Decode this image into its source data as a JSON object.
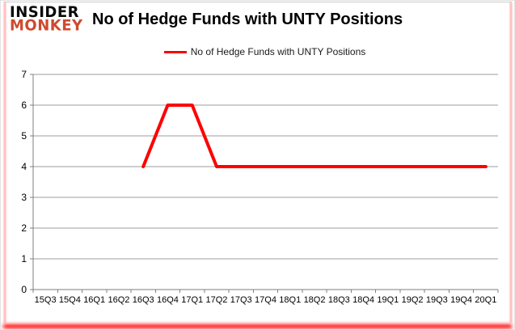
{
  "brand": {
    "line1": "INSIDER",
    "line2": "MONKEY",
    "monkey_color": "#ce4a2e"
  },
  "header": {
    "title": "No of Hedge Funds with UNTY Positions"
  },
  "legend": {
    "label": "No of Hedge Funds with UNTY Positions"
  },
  "colors": {
    "line": "#ff0000",
    "grid": "#9c9c9c",
    "axis": "#7f7f7f",
    "tick_text": "#000000"
  },
  "chart_data": {
    "type": "line",
    "title": "No of Hedge Funds with UNTY Positions",
    "categories": [
      "15Q3",
      "15Q4",
      "16Q1",
      "16Q2",
      "16Q3",
      "16Q4",
      "17Q1",
      "17Q2",
      "17Q3",
      "17Q4",
      "18Q1",
      "18Q2",
      "18Q3",
      "18Q4",
      "19Q1",
      "19Q2",
      "19Q3",
      "19Q4",
      "20Q1"
    ],
    "series": [
      {
        "name": "No of Hedge Funds with UNTY Positions",
        "color": "#ff0000",
        "values": [
          null,
          null,
          null,
          null,
          4,
          6,
          6,
          4,
          4,
          4,
          4,
          4,
          4,
          4,
          4,
          4,
          4,
          4,
          4
        ]
      }
    ],
    "xlabel": "",
    "ylabel": "",
    "ylim": [
      0,
      7
    ],
    "yticks": [
      0,
      1,
      2,
      3,
      4,
      5,
      6,
      7
    ],
    "grid": true,
    "legend_position": "top"
  }
}
